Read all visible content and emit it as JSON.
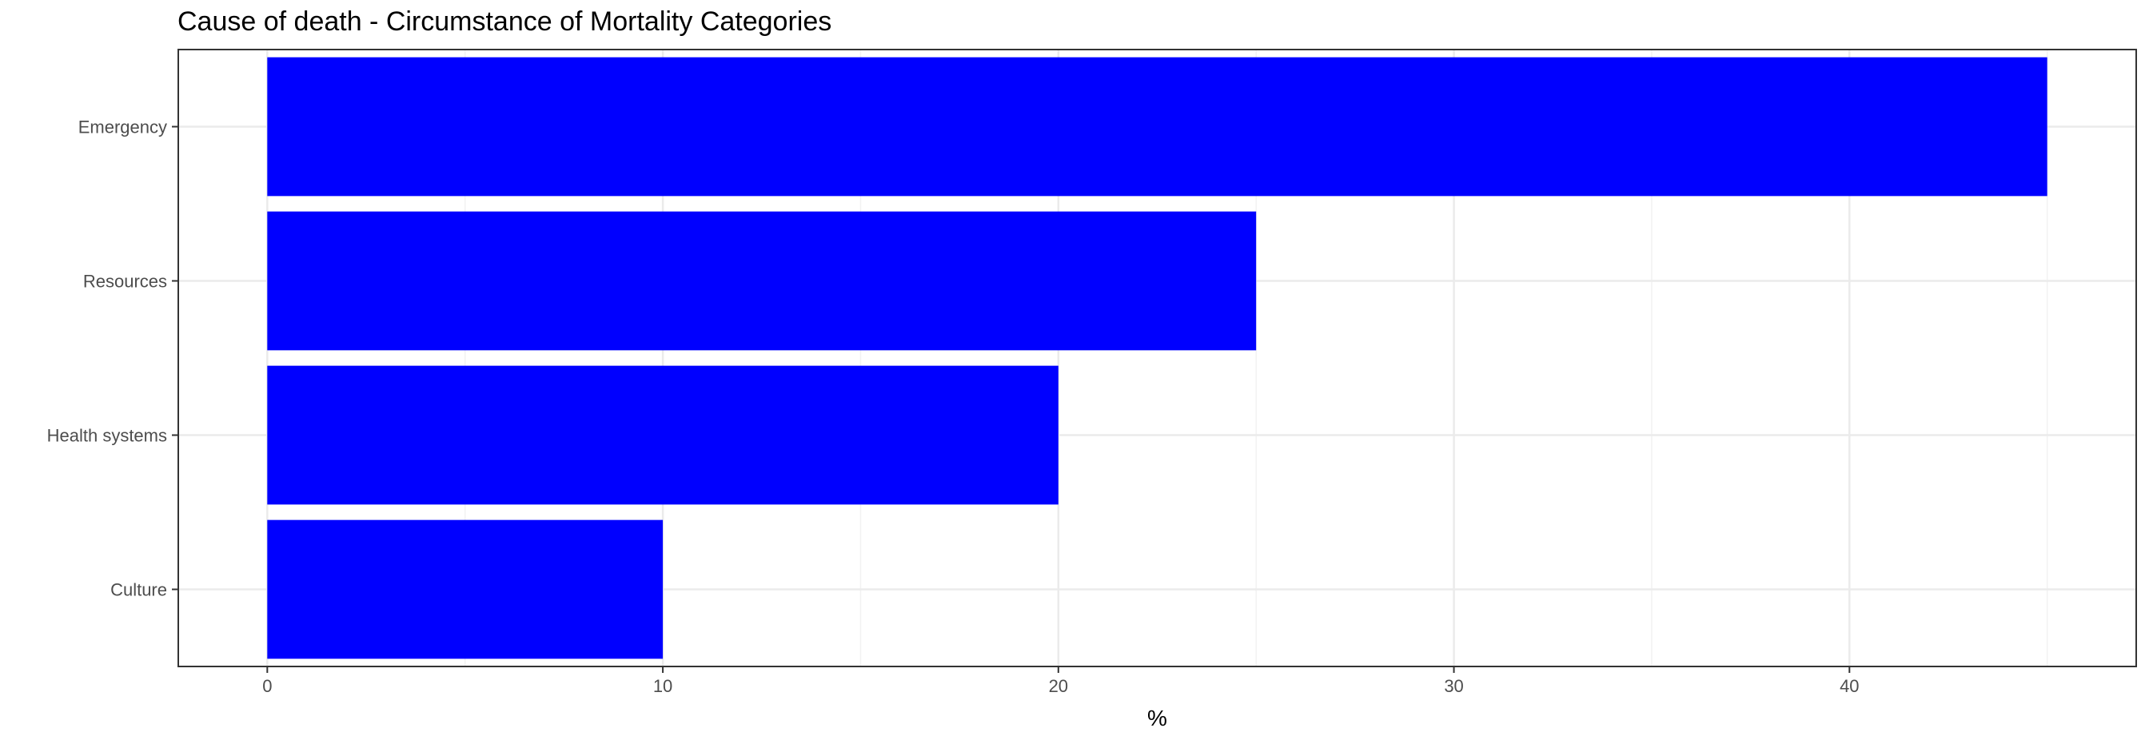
{
  "chart_data": {
    "type": "bar",
    "orientation": "horizontal",
    "title": "Cause of death - Circumstance of Mortality Categories",
    "xlabel": "%",
    "ylabel": "",
    "categories": [
      "Emergency",
      "Resources",
      "Health systems",
      "Culture"
    ],
    "values": [
      45,
      25,
      20,
      10
    ],
    "xlim": [
      -2.25,
      47.25
    ],
    "xticks": [
      0,
      10,
      20,
      30,
      40
    ],
    "xtick_labels": [
      "0",
      "10",
      "20",
      "30",
      "40"
    ],
    "grid": true,
    "legend": "none",
    "colors": {
      "bar": "#0000ff",
      "grid_major": "#ebebeb",
      "grid_minor": "#f2f2f2",
      "panel_border": "#333333",
      "text": "#000000",
      "tick_text": "#4d4d4d"
    }
  }
}
